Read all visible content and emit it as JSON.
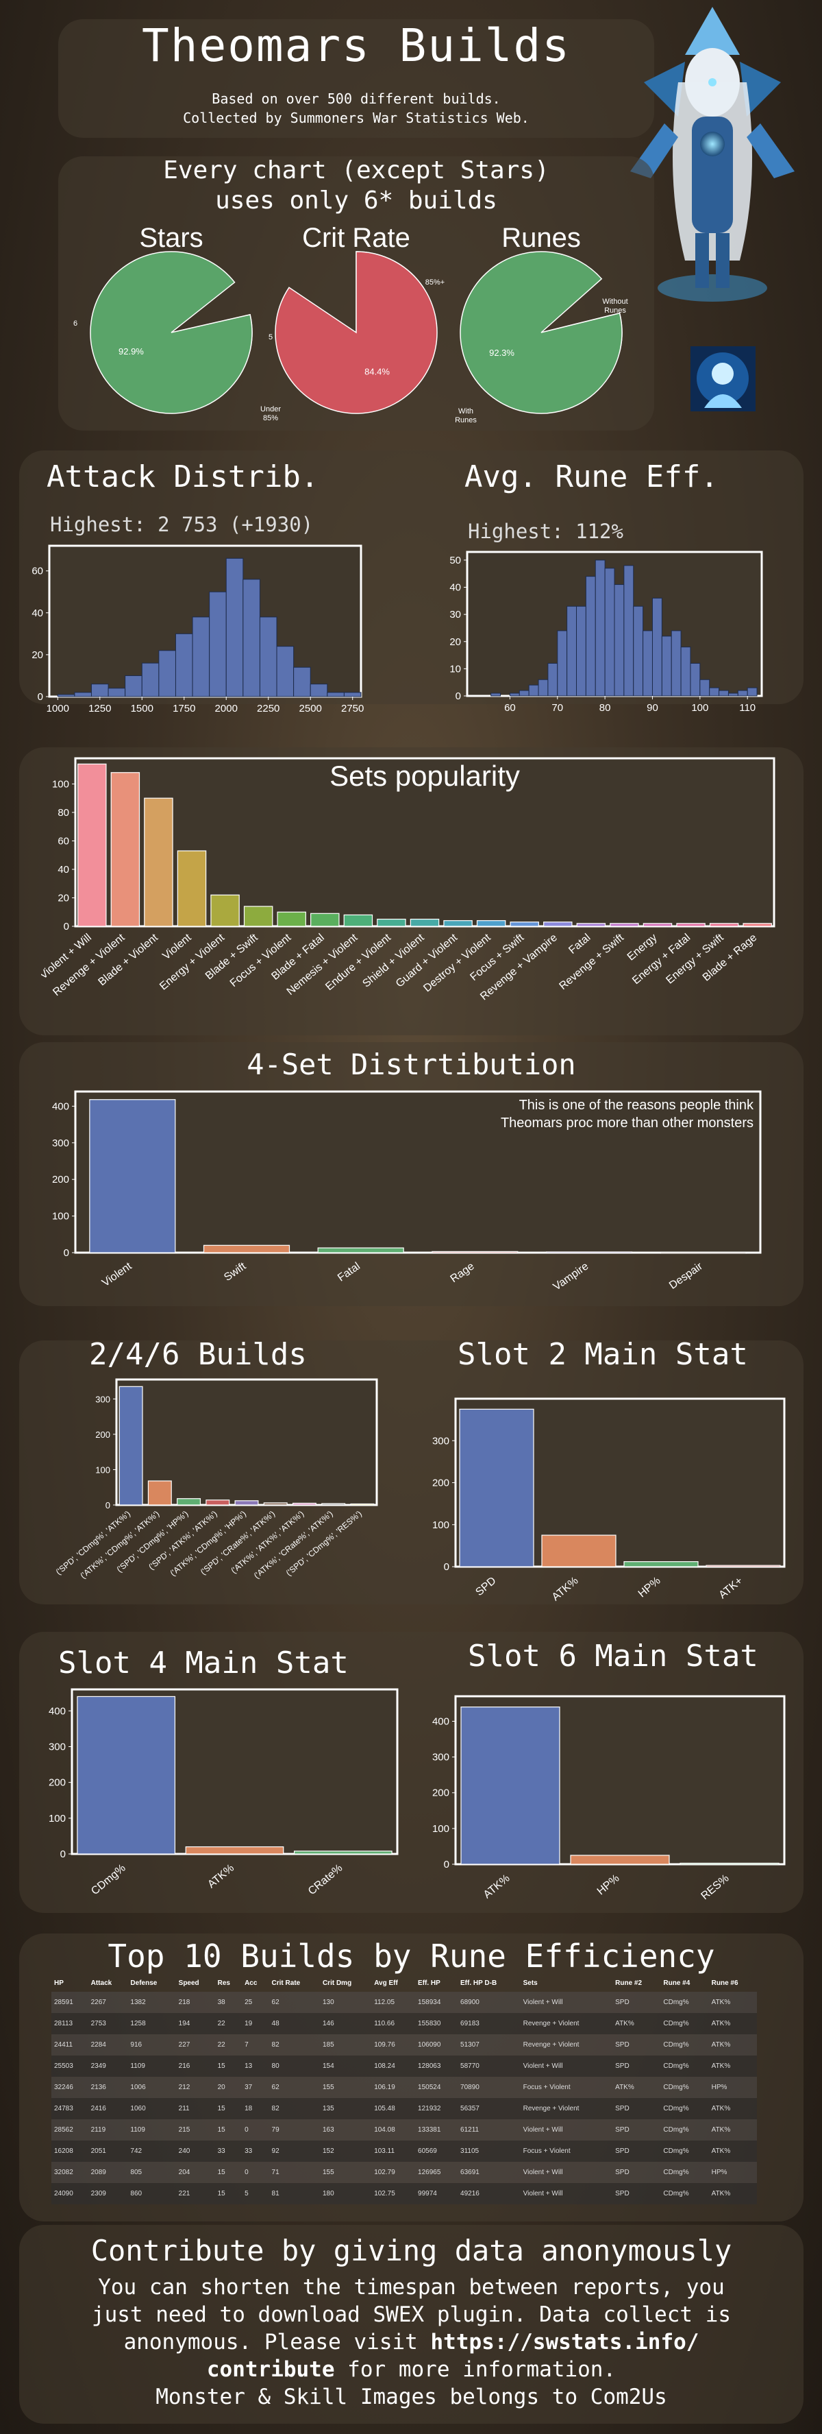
{
  "header": {
    "title": "Theomars Builds",
    "sub1": "Based on over 500 different builds.",
    "sub2": "Collected by Summoners War Statistics Web."
  },
  "pies_section": {
    "heading1": "Every chart (except Stars)",
    "heading2": "uses only 6* builds",
    "pies": [
      {
        "title": "Stars",
        "slices": [
          {
            "label": "6",
            "value": 92.9,
            "pct": "92.9%",
            "color": "#5aa469"
          },
          {
            "label": "5",
            "value": 7.1,
            "pct": "7.1%",
            "color": "#d0545d"
          }
        ]
      },
      {
        "title": "Crit Rate",
        "slices": [
          {
            "label": "85%+",
            "value": 15.6,
            "pct": "15.6%",
            "color": "#5aa469"
          },
          {
            "label": "Under 85%",
            "value": 84.4,
            "pct": "84.4%",
            "color": "#d0545d"
          }
        ]
      },
      {
        "title": "Runes",
        "slices": [
          {
            "label": "With Runes",
            "value": 92.3,
            "pct": "92.3%",
            "color": "#5aa469"
          },
          {
            "label": "Without Runes",
            "value": 7.7,
            "pct": "7.7%",
            "color": "#d0545d"
          }
        ]
      }
    ]
  },
  "attack_section": {
    "title": "Attack Distrib.",
    "highest": "Highest: 2 753 (+1930)"
  },
  "eff_section": {
    "title": "Avg. Rune Eff.",
    "highest": "Highest: 112%"
  },
  "sets_section": {
    "title": "Sets popularity"
  },
  "fourset_section": {
    "title": "4-Set Distrtibution",
    "note1": "This is one of the reasons people think",
    "note2": "Theomars proc more than other monsters"
  },
  "b246_section": {
    "title": "2/4/6 Builds"
  },
  "slot2_section": {
    "title": "Slot 2 Main Stat"
  },
  "slot4_section": {
    "title": "Slot 4 Main Stat"
  },
  "slot6_section": {
    "title": "Slot 6 Main Stat"
  },
  "table_section": {
    "title": "Top 10 Builds by Rune Efficiency",
    "headers": [
      "HP",
      "Attack",
      "Defense",
      "Speed",
      "Res",
      "Acc",
      "Crit Rate",
      "Crit Dmg",
      "Avg Eff",
      "Eff. HP",
      "Eff. HP D-B",
      "Sets",
      "Rune #2",
      "Rune #4",
      "Rune #6"
    ],
    "rows": [
      [
        "28591",
        "2267",
        "1382",
        "218",
        "38",
        "25",
        "62",
        "130",
        "112.05",
        "158934",
        "68900",
        "Violent + Will",
        "SPD",
        "CDmg%",
        "ATK%"
      ],
      [
        "28113",
        "2753",
        "1258",
        "194",
        "22",
        "19",
        "48",
        "146",
        "110.66",
        "155830",
        "69183",
        "Revenge + Violent",
        "ATK%",
        "CDmg%",
        "ATK%"
      ],
      [
        "24411",
        "2284",
        "916",
        "227",
        "22",
        "7",
        "82",
        "185",
        "109.76",
        "106090",
        "51307",
        "Revenge + Violent",
        "SPD",
        "CDmg%",
        "ATK%"
      ],
      [
        "25503",
        "2349",
        "1109",
        "216",
        "15",
        "13",
        "80",
        "154",
        "108.24",
        "128063",
        "58770",
        "Violent + Will",
        "SPD",
        "CDmg%",
        "ATK%"
      ],
      [
        "32246",
        "2136",
        "1006",
        "212",
        "20",
        "37",
        "62",
        "155",
        "106.19",
        "150524",
        "70890",
        "Focus + Violent",
        "ATK%",
        "CDmg%",
        "HP%"
      ],
      [
        "24783",
        "2416",
        "1060",
        "211",
        "15",
        "18",
        "82",
        "135",
        "105.48",
        "121932",
        "56357",
        "Revenge + Violent",
        "SPD",
        "CDmg%",
        "ATK%"
      ],
      [
        "28562",
        "2119",
        "1109",
        "215",
        "15",
        "0",
        "79",
        "163",
        "104.08",
        "133381",
        "61211",
        "Violent + Will",
        "SPD",
        "CDmg%",
        "ATK%"
      ],
      [
        "16208",
        "2051",
        "742",
        "240",
        "33",
        "33",
        "92",
        "152",
        "103.11",
        "60569",
        "31105",
        "Focus + Violent",
        "SPD",
        "CDmg%",
        "ATK%"
      ],
      [
        "32082",
        "2089",
        "805",
        "204",
        "15",
        "0",
        "71",
        "155",
        "102.79",
        "126965",
        "63691",
        "Violent + Will",
        "SPD",
        "CDmg%",
        "HP%"
      ],
      [
        "24090",
        "2309",
        "860",
        "221",
        "15",
        "5",
        "81",
        "180",
        "102.75",
        "99974",
        "49216",
        "Violent + Will",
        "SPD",
        "CDmg%",
        "ATK%"
      ]
    ]
  },
  "footer": {
    "title": "Contribute by giving data anonymously",
    "line1": "You can shorten the timespan between reports, you",
    "line2": "just need to download SWEX plugin. Data collect is",
    "line3a": "anonymous. Please visit ",
    "link": "https://swstats.info/",
    "link2": "contribute",
    "line4rest": " for more information.",
    "line5": "Monster & Skill Images belongs to Com2Us"
  },
  "chart_data": [
    {
      "id": "attack",
      "type": "bar",
      "title": "Attack Distrib.",
      "x": [
        1000,
        1100,
        1200,
        1300,
        1400,
        1500,
        1600,
        1700,
        1800,
        1900,
        2000,
        2100,
        2200,
        2300,
        2400,
        2500,
        2600,
        2700
      ],
      "values": [
        1,
        2,
        6,
        4,
        10,
        16,
        22,
        30,
        38,
        50,
        66,
        56,
        38,
        24,
        14,
        6,
        2,
        2
      ],
      "ylim": [
        0,
        72
      ],
      "xlim": [
        950,
        2800
      ],
      "yticks": [
        0,
        20,
        40,
        60
      ],
      "xticks": [
        1000,
        1250,
        1500,
        1750,
        2000,
        2250,
        2500,
        2750
      ],
      "color": "#5b72b0"
    },
    {
      "id": "efficiency",
      "type": "bar",
      "title": "Avg. Rune Eff.",
      "x": [
        56,
        58,
        60,
        62,
        64,
        66,
        68,
        70,
        72,
        74,
        76,
        78,
        80,
        82,
        84,
        86,
        88,
        90,
        92,
        94,
        96,
        98,
        100,
        102,
        104,
        106,
        108,
        110
      ],
      "values": [
        1,
        0,
        1,
        2,
        4,
        6,
        12,
        24,
        33,
        33,
        44,
        50,
        47,
        41,
        48,
        33,
        24,
        36,
        22,
        24,
        18,
        12,
        6,
        3,
        2,
        1,
        2,
        3
      ],
      "ylim": [
        0,
        53
      ],
      "xlim": [
        51,
        113
      ],
      "yticks": [
        0,
        10,
        20,
        30,
        40,
        50
      ],
      "xticks": [
        60,
        70,
        80,
        90,
        100,
        110
      ],
      "color": "#5b72b0"
    },
    {
      "id": "sets",
      "type": "bar",
      "title": "Sets popularity",
      "categories": [
        "Violent + Will",
        "Revenge + Violent",
        "Blade + Violent",
        "Violent",
        "Energy + Violent",
        "Blade + Swift",
        "Focus + Violent",
        "Blade + Fatal",
        "Nemesis + Violent",
        "Endure + Violent",
        "Shield + Violent",
        "Guard + Violent",
        "Destroy + Violent",
        "Focus + Swift",
        "Revenge + Vampire",
        "Fatal",
        "Revenge + Swift",
        "Energy",
        "Energy + Fatal",
        "Energy + Swift",
        "Blade + Rage"
      ],
      "values": [
        114,
        108,
        90,
        53,
        22,
        14,
        10,
        9,
        8,
        5,
        5,
        4,
        4,
        3,
        3,
        2,
        2,
        2,
        2,
        2,
        2
      ],
      "ylim": [
        0,
        118
      ],
      "yticks": [
        0,
        20,
        40,
        60,
        80,
        100
      ],
      "colors": [
        "#f28f9a",
        "#e8917a",
        "#d4a060",
        "#c4a448",
        "#aaa93e",
        "#8dab3e",
        "#6cb04a",
        "#5aaf5e",
        "#4daf79",
        "#47ad92",
        "#47aaa6",
        "#49a6ba",
        "#4fa0cc",
        "#6495d8",
        "#8b89dc",
        "#a87fd8",
        "#c277cc",
        "#d673ba",
        "#e471a6",
        "#ec7593",
        "#f07e84"
      ]
    },
    {
      "id": "fourset",
      "type": "bar",
      "title": "4-Set Distrtibution",
      "categories": [
        "Violent",
        "Swift",
        "Fatal",
        "Rage",
        "Vampire",
        "Despair"
      ],
      "values": [
        418,
        20,
        13,
        3,
        2,
        1
      ],
      "ylim": [
        0,
        440
      ],
      "yticks": [
        0,
        100,
        200,
        300,
        400
      ],
      "colors": [
        "#5b72b0",
        "#d9875e",
        "#5fae72",
        "#c95f5f",
        "#8a78b8",
        "#8c7060"
      ]
    },
    {
      "id": "b246",
      "type": "bar",
      "title": "2/4/6 Builds",
      "categories": [
        "('SPD', 'CDmg%', 'ATK%')",
        "('ATK%', 'CDmg%', 'ATK%')",
        "('SPD', 'CDmg%', 'HP%')",
        "('SPD', 'ATK%', 'ATK%')",
        "('ATK%', 'CDmg%', 'HP%')",
        "('SPD', 'CRate%', 'ATK%')",
        "('ATK%', 'ATK%', 'ATK%')",
        "('ATK%', 'CRate%', 'ATK%')",
        "('SPD', 'CDmg%', 'RES%')"
      ],
      "values": [
        335,
        68,
        18,
        14,
        12,
        6,
        5,
        4,
        3
      ],
      "ylim": [
        0,
        355
      ],
      "yticks": [
        0,
        100,
        200,
        300
      ],
      "colors": [
        "#5b72b0",
        "#d9875e",
        "#5fae72",
        "#c95f5f",
        "#8a78b8",
        "#8c7060",
        "#d58cbf",
        "#8c8c8c",
        "#c9c25a"
      ]
    },
    {
      "id": "slot2",
      "type": "bar",
      "title": "Slot 2 Main Stat",
      "categories": [
        "SPD",
        "ATK%",
        "HP%",
        "ATK+"
      ],
      "values": [
        375,
        75,
        12,
        3
      ],
      "ylim": [
        0,
        400
      ],
      "yticks": [
        0,
        100,
        200,
        300
      ],
      "colors": [
        "#5b72b0",
        "#d9875e",
        "#5fae72",
        "#c95f5f"
      ]
    },
    {
      "id": "slot4",
      "type": "bar",
      "title": "Slot 4 Main Stat",
      "categories": [
        "CDmg%",
        "ATK%",
        "CRate%"
      ],
      "values": [
        440,
        20,
        8
      ],
      "ylim": [
        0,
        460
      ],
      "yticks": [
        0,
        100,
        200,
        300,
        400
      ],
      "colors": [
        "#5b72b0",
        "#d9875e",
        "#5fae72"
      ]
    },
    {
      "id": "slot6",
      "type": "bar",
      "title": "Slot 6 Main Stat",
      "categories": [
        "ATK%",
        "HP%",
        "RES%"
      ],
      "values": [
        440,
        25,
        3
      ],
      "ylim": [
        0,
        470
      ],
      "yticks": [
        0,
        100,
        200,
        300,
        400
      ],
      "colors": [
        "#5b72b0",
        "#d9875e",
        "#5fae72"
      ]
    }
  ]
}
